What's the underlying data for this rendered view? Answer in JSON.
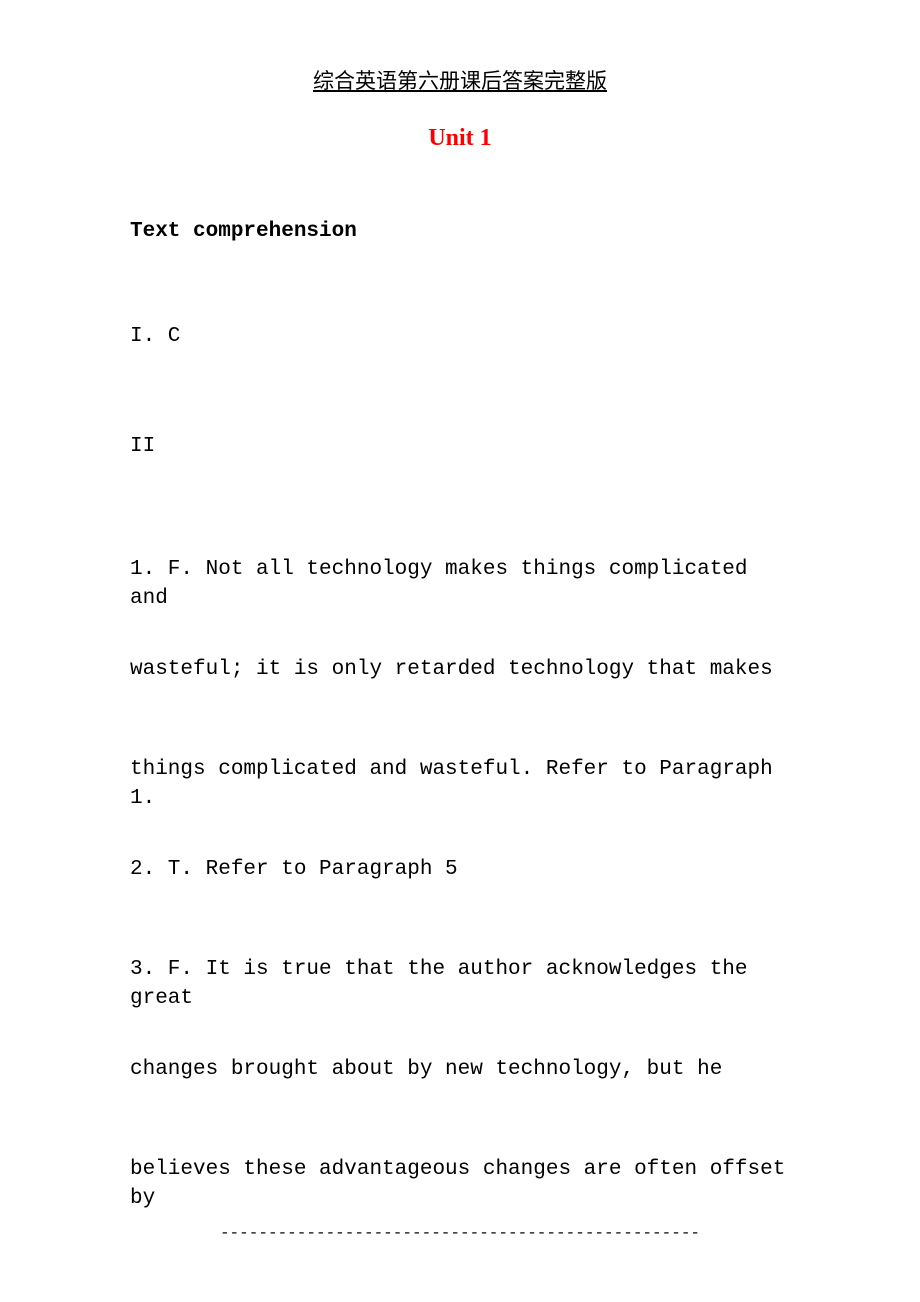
{
  "header": {
    "title": "综合英语第六册课后答案完整版"
  },
  "unit": {
    "title": "Unit 1"
  },
  "section": {
    "heading": "Text comprehension"
  },
  "roman_numerals": {
    "first": "I. C",
    "second": "II"
  },
  "body": {
    "line1": "1. F. Not all technology makes things complicated and",
    "line2": "wasteful; it is only retarded technology that makes",
    "line3": "things complicated and wasteful. Refer to Paragraph 1.",
    "line4": "2. T. Refer to Paragraph 5",
    "line5": "3. F. It is true that the author acknowledges the great",
    "line6": "changes brought about by new technology, but he",
    "line7": "believes these advantageous changes are often offset by"
  },
  "footer": {
    "separator": "--------------------------------------------------"
  },
  "colors": {
    "background": "#ffffff",
    "text_black": "#000000",
    "title_red": "#ff0000"
  },
  "typography": {
    "header_fontsize": 21,
    "unit_title_fontsize": 24,
    "body_fontsize": 21,
    "footer_fontsize": 16
  }
}
